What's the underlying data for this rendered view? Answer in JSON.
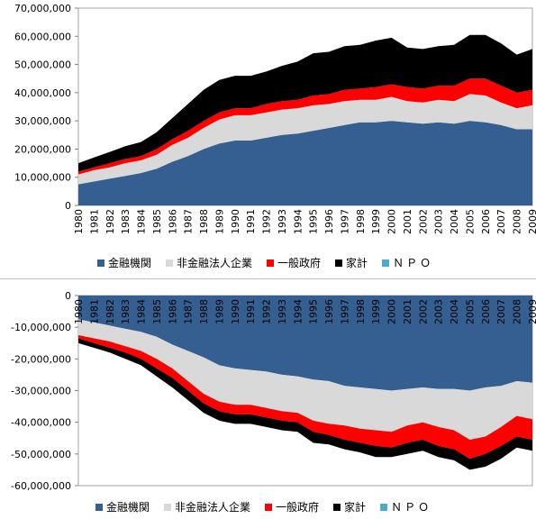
{
  "series_colors": {
    "金融機関": "#365f91",
    "非金融法人企業": "#d9d9d9",
    "一般政府": "#ff0000",
    "家計": "#000000",
    "ＮＰＯ": "#4bacc6"
  },
  "chart_data": [
    {
      "type": "area",
      "stacked": true,
      "categories": [
        "1980",
        "1981",
        "1982",
        "1983",
        "1984",
        "1985",
        "1986",
        "1987",
        "1988",
        "1989",
        "1990",
        "1991",
        "1992",
        "1993",
        "1994",
        "1995",
        "1996",
        "1997",
        "1998",
        "1999",
        "2000",
        "2001",
        "2002",
        "2003",
        "2004",
        "2005",
        "2006",
        "2007",
        "2008",
        "2009"
      ],
      "y_ticks": [
        "70,000,000",
        "60,000,000",
        "50,000,000",
        "40,000,000",
        "30,000,000",
        "20,000,000",
        "10,000,000",
        "0"
      ],
      "ylim": [
        0,
        70000000
      ],
      "legend": [
        "金融機関",
        "非金融法人企業",
        "一般政府",
        "家計",
        "ＮＰＯ"
      ],
      "legend_position": "bottom",
      "series": [
        {
          "name": "金融機関",
          "values": [
            7500000,
            8500000,
            9500000,
            10500000,
            11500000,
            13000000,
            15500000,
            17500000,
            20000000,
            22000000,
            23000000,
            23000000,
            24000000,
            25000000,
            25500000,
            26500000,
            27500000,
            28500000,
            29500000,
            29500000,
            30000000,
            29500000,
            29000000,
            29500000,
            29000000,
            30000000,
            29500000,
            28500000,
            27000000,
            27000000
          ]
        },
        {
          "name": "非金融法人企業",
          "values": [
            3500000,
            4000000,
            4000000,
            4500000,
            4500000,
            5000000,
            6000000,
            6500000,
            7500000,
            8500000,
            9000000,
            9000000,
            9000000,
            9000000,
            9000000,
            9000000,
            8500000,
            8500000,
            8000000,
            8000000,
            8500000,
            7500000,
            7500000,
            8000000,
            8000000,
            9500000,
            9500000,
            8000000,
            7500000,
            8500000
          ]
        },
        {
          "name": "一般政府",
          "values": [
            1000000,
            1000000,
            1500000,
            1500000,
            1500000,
            2000000,
            2000000,
            2500000,
            2500000,
            2500000,
            2500000,
            2500000,
            3000000,
            3000000,
            3000000,
            3500000,
            3500000,
            4000000,
            4000000,
            4500000,
            4500000,
            5000000,
            5000000,
            5000000,
            5500000,
            5500000,
            6000000,
            6000000,
            5500000,
            5500000
          ]
        },
        {
          "name": "家計",
          "values": [
            3000000,
            3500000,
            4000000,
            4500000,
            5000000,
            6000000,
            7500000,
            9500000,
            11000000,
            11500000,
            11500000,
            11500000,
            11500000,
            12500000,
            13500000,
            15000000,
            15000000,
            15500000,
            15500000,
            16500000,
            16500000,
            14000000,
            14000000,
            14000000,
            14500000,
            15500000,
            15500000,
            15000000,
            13500000,
            14500000
          ]
        },
        {
          "name": "ＮＰＯ",
          "values": [
            0,
            0,
            0,
            0,
            0,
            0,
            0,
            0,
            0,
            0,
            0,
            0,
            0,
            0,
            0,
            0,
            0,
            0,
            0,
            0,
            0,
            0,
            0,
            0,
            0,
            0,
            0,
            0,
            0,
            0
          ]
        }
      ]
    },
    {
      "type": "area",
      "stacked": true,
      "categories": [
        "1980",
        "1981",
        "1982",
        "1983",
        "1984",
        "1985",
        "1986",
        "1987",
        "1988",
        "1989",
        "1990",
        "1991",
        "1992",
        "1993",
        "1994",
        "1995",
        "1996",
        "1997",
        "1998",
        "1999",
        "2000",
        "2001",
        "2002",
        "2003",
        "2004",
        "2005",
        "2006",
        "2007",
        "2008",
        "2009"
      ],
      "y_ticks": [
        "0",
        "-10,000,000",
        "-20,000,000",
        "-30,000,000",
        "-40,000,000",
        "-50,000,000",
        "-60,000,000"
      ],
      "ylim": [
        -60000000,
        0
      ],
      "legend": [
        "金融機関",
        "非金融法人企業",
        "一般政府",
        "家計",
        "ＮＰＯ"
      ],
      "legend_position": "bottom",
      "series": [
        {
          "name": "金融機関",
          "values": [
            -7500000,
            -8500000,
            -9500000,
            -10500000,
            -11500000,
            -13000000,
            -15500000,
            -17500000,
            -19500000,
            -22000000,
            -23000000,
            -23500000,
            -24000000,
            -25000000,
            -25500000,
            -26500000,
            -27000000,
            -28500000,
            -29000000,
            -29500000,
            -30000000,
            -29500000,
            -29000000,
            -29500000,
            -29500000,
            -30000000,
            -29000000,
            -28500000,
            -27000000,
            -27500000
          ]
        },
        {
          "name": "非金融法人企業",
          "values": [
            -5000000,
            -5000000,
            -5000000,
            -5500000,
            -6000000,
            -7000000,
            -7500000,
            -9500000,
            -11500000,
            -11500000,
            -11500000,
            -11000000,
            -11500000,
            -11500000,
            -11500000,
            -13000000,
            -13500000,
            -12500000,
            -13000000,
            -13000000,
            -13000000,
            -11500000,
            -11000000,
            -12000000,
            -13000000,
            -15500000,
            -15500000,
            -13000000,
            -11000000,
            -11500000
          ]
        },
        {
          "name": "一般政府",
          "values": [
            -1000000,
            -1500000,
            -2000000,
            -2000000,
            -2500000,
            -3000000,
            -3000000,
            -3000000,
            -3000000,
            -3000000,
            -3000000,
            -3000000,
            -3000000,
            -3000000,
            -3000000,
            -3500000,
            -3500000,
            -4500000,
            -4500000,
            -5000000,
            -5000000,
            -5500000,
            -5500000,
            -6000000,
            -6000000,
            -6000000,
            -5500000,
            -6000000,
            -6500000,
            -6500000
          ]
        },
        {
          "name": "家計",
          "values": [
            -1500000,
            -1500000,
            -1500000,
            -2000000,
            -2000000,
            -2500000,
            -3000000,
            -3000000,
            -3000000,
            -3000000,
            -3000000,
            -3000000,
            -3000000,
            -3000000,
            -3000000,
            -3500000,
            -3000000,
            -3000000,
            -3000000,
            -3500000,
            -3000000,
            -3500000,
            -3500000,
            -3500000,
            -3500000,
            -3500000,
            -4000000,
            -4000000,
            -3500000,
            -3500000
          ]
        },
        {
          "name": "ＮＰＯ",
          "values": [
            0,
            0,
            0,
            0,
            0,
            0,
            0,
            0,
            0,
            0,
            0,
            0,
            0,
            0,
            0,
            0,
            0,
            0,
            0,
            0,
            0,
            0,
            0,
            0,
            0,
            0,
            0,
            0,
            0,
            0
          ]
        }
      ]
    }
  ]
}
